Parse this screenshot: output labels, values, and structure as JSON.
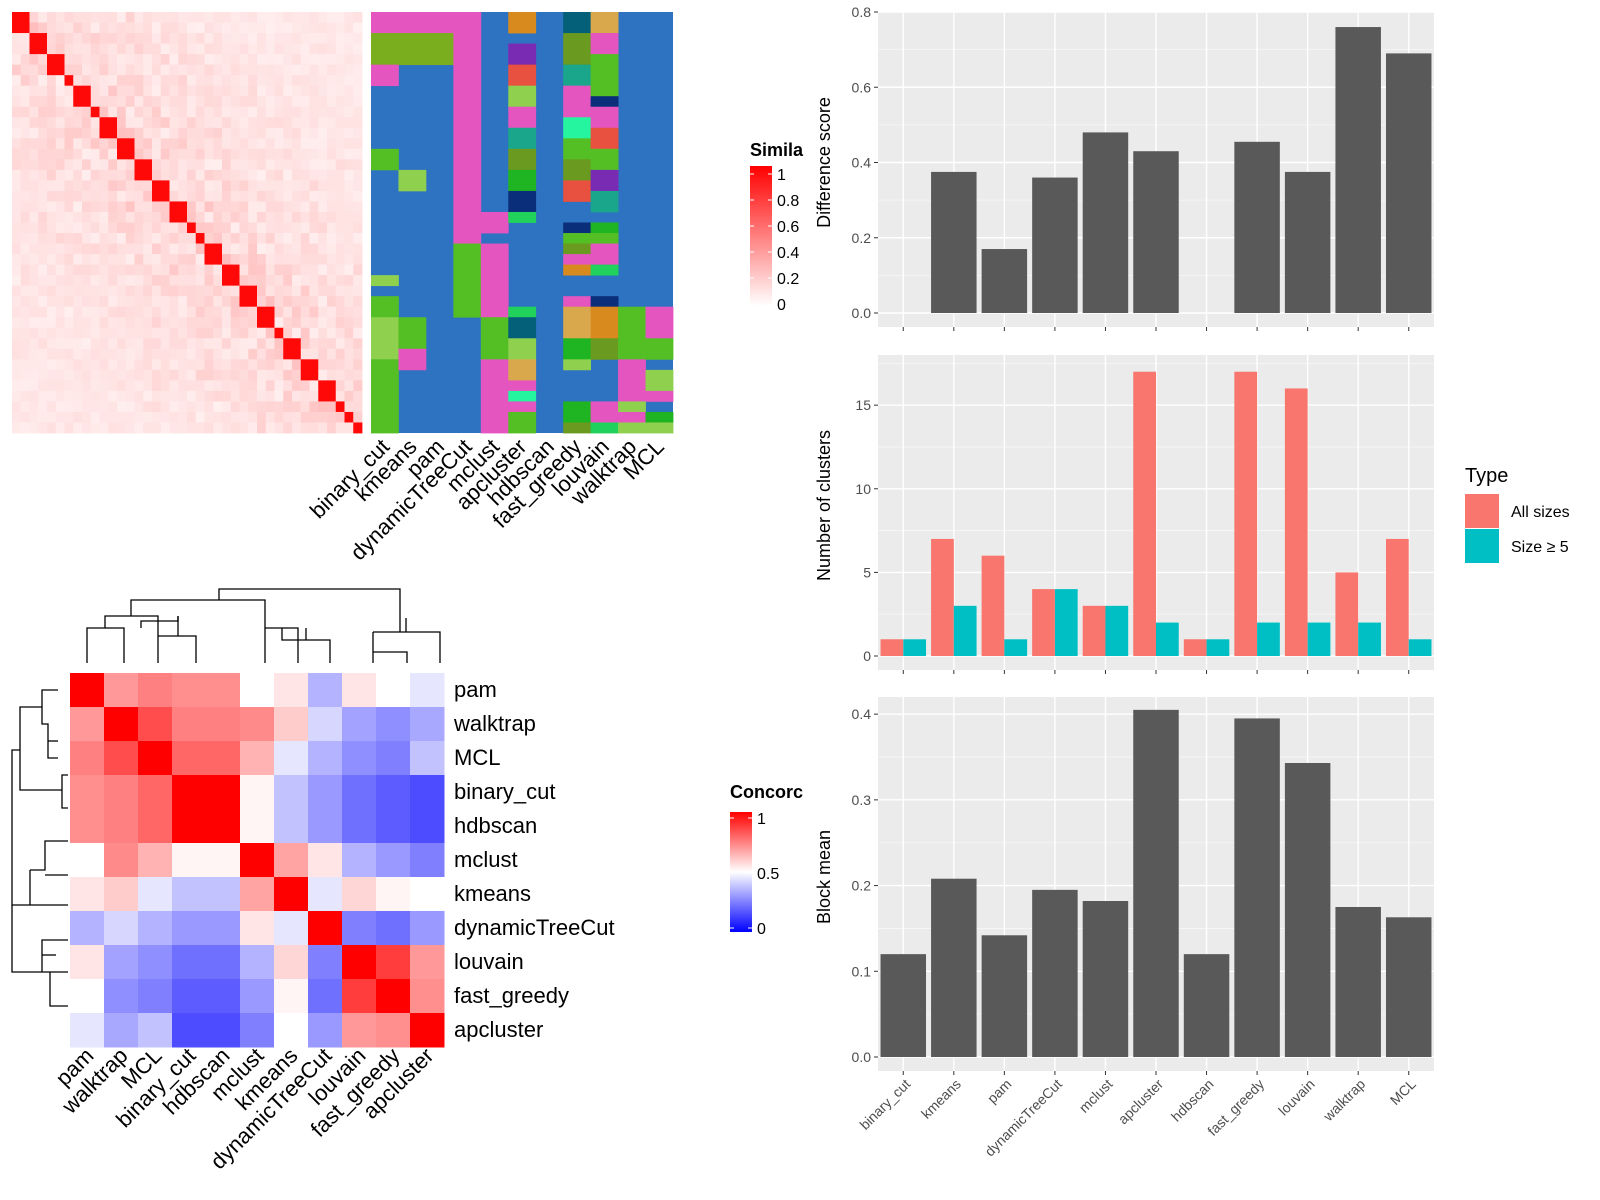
{
  "chart_data": [
    {
      "type": "heatmap",
      "name": "cell_similarity",
      "legend_title": "Simila",
      "legend_ticks": [
        "1",
        "0.8",
        "0.6",
        "0.4",
        "0.2",
        "0"
      ],
      "value_range": [
        0,
        1
      ]
    },
    {
      "type": "heatmap",
      "name": "cluster_assignments",
      "columns": [
        "binary_cut",
        "kmeans",
        "pam",
        "dynamicTreeCut",
        "mclust",
        "apcluster",
        "hdbscan",
        "fast_greedy",
        "louvain",
        "walktrap",
        "MCL"
      ]
    },
    {
      "type": "heatmap",
      "name": "method_concordance",
      "legend_title": "Concorc",
      "legend_ticks": [
        "1",
        "0.5",
        "0"
      ],
      "value_range": [
        0,
        1
      ],
      "rows": [
        "pam",
        "walktrap",
        "MCL",
        "binary_cut",
        "hdbscan",
        "mclust",
        "kmeans",
        "dynamicTreeCut",
        "louvain",
        "fast_greedy",
        "apcluster"
      ],
      "columns": [
        "pam",
        "walktrap",
        "MCL",
        "binary_cut",
        "hdbscan",
        "mclust",
        "kmeans",
        "dynamicTreeCut",
        "louvain",
        "fast_greedy",
        "apcluster"
      ],
      "values": [
        [
          1.0,
          0.7,
          0.75,
          0.72,
          0.72,
          0.5,
          0.55,
          0.35,
          0.55,
          0.5,
          0.45
        ],
        [
          0.7,
          1.0,
          0.85,
          0.75,
          0.75,
          0.73,
          0.6,
          0.42,
          0.32,
          0.28,
          0.33
        ],
        [
          0.75,
          0.85,
          1.0,
          0.8,
          0.8,
          0.65,
          0.45,
          0.35,
          0.28,
          0.25,
          0.38
        ],
        [
          0.72,
          0.75,
          0.8,
          1.0,
          1.0,
          0.52,
          0.38,
          0.3,
          0.22,
          0.18,
          0.15
        ],
        [
          0.72,
          0.75,
          0.8,
          1.0,
          1.0,
          0.52,
          0.38,
          0.3,
          0.22,
          0.18,
          0.15
        ],
        [
          0.5,
          0.73,
          0.65,
          0.52,
          0.52,
          1.0,
          0.68,
          0.55,
          0.35,
          0.3,
          0.25
        ],
        [
          0.55,
          0.6,
          0.45,
          0.38,
          0.38,
          0.68,
          1.0,
          0.45,
          0.58,
          0.52,
          0.5
        ],
        [
          0.35,
          0.42,
          0.35,
          0.3,
          0.3,
          0.55,
          0.45,
          1.0,
          0.25,
          0.22,
          0.3
        ],
        [
          0.55,
          0.32,
          0.28,
          0.22,
          0.22,
          0.35,
          0.58,
          0.25,
          1.0,
          0.88,
          0.7
        ],
        [
          0.5,
          0.28,
          0.25,
          0.18,
          0.18,
          0.3,
          0.52,
          0.22,
          0.88,
          1.0,
          0.72
        ],
        [
          0.45,
          0.33,
          0.38,
          0.15,
          0.15,
          0.25,
          0.5,
          0.3,
          0.7,
          0.72,
          1.0
        ]
      ]
    },
    {
      "type": "bar",
      "name": "difference_score",
      "categories": [
        "binary_cut",
        "kmeans",
        "pam",
        "dynamicTreeCut",
        "mclust",
        "apcluster",
        "hdbscan",
        "fast_greedy",
        "louvain",
        "walktrap",
        "MCL"
      ],
      "values": [
        0,
        0.375,
        0.17,
        0.36,
        0.48,
        0.43,
        0,
        0.455,
        0.375,
        0.76,
        0.69
      ],
      "ylabel": "Difference score",
      "ylim": [
        0,
        0.8
      ],
      "yticks": [
        "0.0",
        "0.2",
        "0.4",
        "0.6",
        "0.8"
      ]
    },
    {
      "type": "bar",
      "name": "number_of_clusters",
      "categories": [
        "binary_cut",
        "kmeans",
        "pam",
        "dynamicTreeCut",
        "mclust",
        "apcluster",
        "hdbscan",
        "fast_greedy",
        "louvain",
        "walktrap",
        "MCL"
      ],
      "series": [
        {
          "name": "All sizes",
          "color": "#f8766d",
          "values": [
            1,
            7,
            6,
            4,
            3,
            17,
            1,
            17,
            16,
            5,
            7
          ]
        },
        {
          "name": "Size ≥ 5",
          "color": "#00bfc4",
          "values": [
            1,
            3,
            1,
            4,
            3,
            2,
            1,
            2,
            2,
            2,
            1
          ]
        }
      ],
      "ylabel": "Number of clusters",
      "ylim": [
        0,
        18
      ],
      "yticks": [
        "0",
        "5",
        "10",
        "15"
      ],
      "legend_title": "Type"
    },
    {
      "type": "bar",
      "name": "block_mean",
      "categories": [
        "binary_cut",
        "kmeans",
        "pam",
        "dynamicTreeCut",
        "mclust",
        "apcluster",
        "hdbscan",
        "fast_greedy",
        "louvain",
        "walktrap",
        "MCL"
      ],
      "values": [
        0.12,
        0.208,
        0.142,
        0.195,
        0.182,
        0.405,
        0.12,
        0.395,
        0.343,
        0.175,
        0.163
      ],
      "ylabel": "Block mean",
      "ylim": [
        0,
        0.42
      ],
      "yticks": [
        "0.0",
        "0.1",
        "0.2",
        "0.3",
        "0.4"
      ]
    }
  ]
}
